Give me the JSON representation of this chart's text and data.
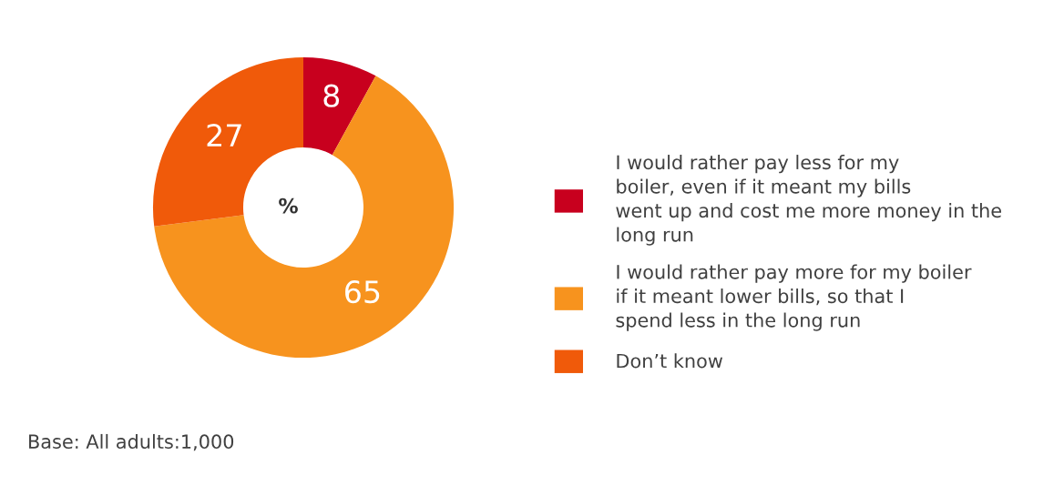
{
  "chart_data": {
    "type": "donut",
    "categories": [
      "I would rather pay less for my boiler, even if it meant my bills went up and cost me more money in the long run",
      "I would rather pay more for my boiler if it meant lower bills, so that I spend less in the long run",
      "Don’t know"
    ],
    "values": [
      8,
      65,
      27
    ],
    "colors": [
      "#c8001e",
      "#f7931e",
      "#f05a0a"
    ],
    "data_labels": true,
    "legend": "right",
    "annotations": [
      "%",
      "Base: All adults:1,000"
    ]
  }
}
